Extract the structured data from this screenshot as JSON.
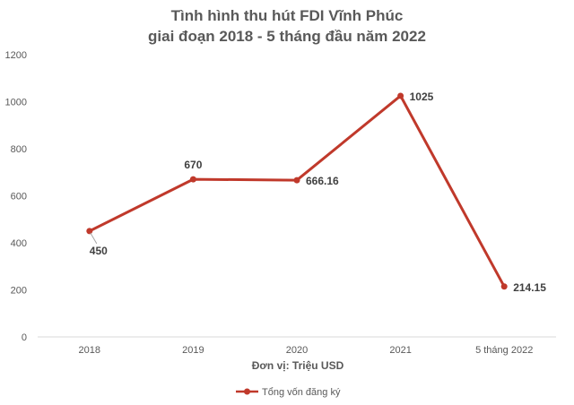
{
  "chart_data": {
    "type": "line",
    "title_lines": [
      "Tình hình thu hút FDI Vĩnh Phúc",
      "giai đoạn 2018 - 5 tháng đầu năm 2022"
    ],
    "xlabel": "Đơn vị: Triệu USD",
    "ylabel": "",
    "categories": [
      "2018",
      "2019",
      "2020",
      "2021",
      "5 tháng 2022"
    ],
    "ylim": [
      0,
      1200
    ],
    "yticks": [
      0,
      200,
      400,
      600,
      800,
      1000,
      1200
    ],
    "grid": false,
    "legend_position": "bottom",
    "series": [
      {
        "name": "Tổng vốn đăng ký",
        "color": "#C0392B",
        "values": [
          450,
          670,
          666.16,
          1025,
          214.15
        ],
        "labels": [
          "450",
          "670",
          "666.16",
          "1025",
          "214.15"
        ]
      }
    ]
  }
}
